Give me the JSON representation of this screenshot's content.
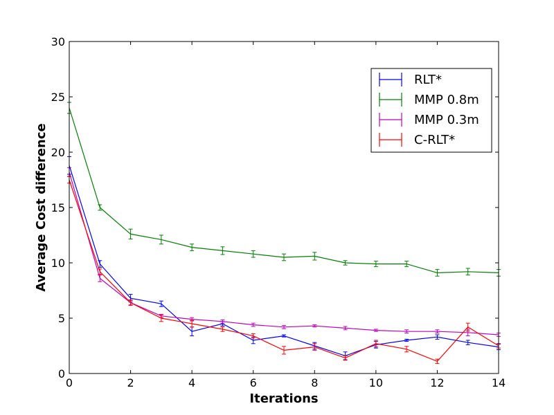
{
  "chart_data": {
    "type": "line",
    "xlabel": "Iterations",
    "ylabel": "Average Cost difference",
    "xlim": [
      0,
      14
    ],
    "ylim": [
      0,
      30
    ],
    "xticks": [
      "0",
      "2",
      "4",
      "6",
      "8",
      "10",
      "12",
      "14"
    ],
    "yticks": [
      "0",
      "5",
      "10",
      "15",
      "20",
      "25",
      "30"
    ],
    "grid": false,
    "legend_position": "top-right",
    "x": [
      0,
      1,
      2,
      3,
      4,
      5,
      6,
      7,
      8,
      9,
      10,
      11,
      12,
      13,
      14
    ],
    "series": [
      {
        "name": "RLT*",
        "color": "#0000ff",
        "values": [
          18.8,
          9.9,
          6.8,
          6.3,
          3.8,
          4.5,
          3.0,
          3.4,
          2.5,
          1.6,
          2.6,
          3.0,
          3.3,
          2.8,
          2.4
        ],
        "errors": [
          0.8,
          0.3,
          0.35,
          0.25,
          0.4,
          0.2,
          0.3,
          0.1,
          0.3,
          0.35,
          0.3,
          0.1,
          0.2,
          0.2,
          0.25
        ]
      },
      {
        "name": "MMP 0.8m",
        "color": "#008000",
        "values": [
          24.0,
          15.0,
          12.6,
          12.1,
          11.4,
          11.1,
          10.8,
          10.5,
          10.6,
          10.0,
          9.9,
          9.9,
          9.1,
          9.2,
          9.1
        ],
        "errors": [
          0.5,
          0.25,
          0.45,
          0.4,
          0.3,
          0.35,
          0.3,
          0.3,
          0.35,
          0.2,
          0.25,
          0.25,
          0.3,
          0.3,
          0.3
        ]
      },
      {
        "name": "MMP 0.3m",
        "color": "#bf00bf",
        "values": [
          18.2,
          8.6,
          6.4,
          5.2,
          4.9,
          4.7,
          4.4,
          4.2,
          4.3,
          4.1,
          3.9,
          3.8,
          3.8,
          3.7,
          3.5
        ],
        "errors": [
          0.4,
          0.3,
          0.25,
          0.15,
          0.15,
          0.15,
          0.15,
          0.15,
          0.1,
          0.15,
          0.1,
          0.15,
          0.15,
          0.3,
          0.15
        ]
      },
      {
        "name": "C-RLT*",
        "color": "#ff0000",
        "values": [
          17.5,
          9.2,
          6.4,
          5.0,
          4.5,
          4.0,
          3.4,
          2.1,
          2.4,
          1.4,
          2.7,
          2.2,
          1.1,
          4.2,
          2.5
        ],
        "errors": [
          0.3,
          0.25,
          0.2,
          0.3,
          0.3,
          0.2,
          0.2,
          0.35,
          0.3,
          0.2,
          0.3,
          0.25,
          0.2,
          0.35,
          0.2
        ]
      }
    ]
  }
}
